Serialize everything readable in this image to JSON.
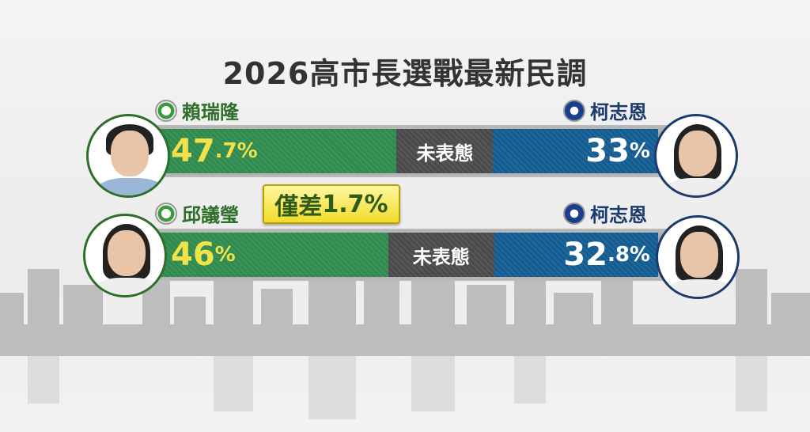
{
  "chart_data": {
    "type": "bar",
    "title": "2026高市長選戰最新民調",
    "undecided_label": "未表態",
    "series_colors": {
      "dpp": "#2f8a4e",
      "undecided": "#4a4a4a",
      "kmt": "#135c92"
    },
    "matchups": [
      {
        "left": {
          "name": "賴瑞隆",
          "party_icon": "dpp-flag-icon",
          "value": 47.7,
          "main": "47",
          "dec": ".7",
          "pct": "%"
        },
        "right": {
          "name": "柯志恩",
          "party_icon": "kmt-sun-icon",
          "value": 33,
          "main": "33",
          "dec": "",
          "pct": "%"
        }
      },
      {
        "left": {
          "name": "邱議瑩",
          "party_icon": "dpp-flag-icon",
          "value": 46,
          "main": "46",
          "dec": "",
          "pct": "%"
        },
        "right": {
          "name": "柯志恩",
          "party_icon": "kmt-sun-icon",
          "value": 32.8,
          "main": "32",
          "dec": ".8",
          "pct": "%"
        }
      }
    ],
    "annotation": {
      "prefix": "僅差",
      "value": "1.7%"
    }
  }
}
